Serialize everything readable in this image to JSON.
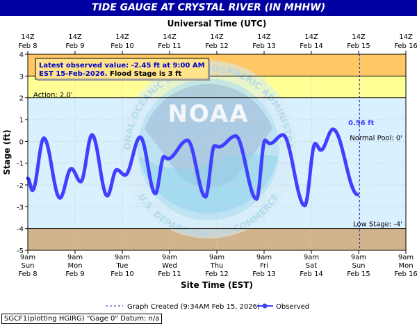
{
  "chart_data": {
    "type": "line",
    "title": "TIDE GAUGE AT CRYSTAL RIVER (IN MHHW)",
    "top_axis_label": "Universal Time (UTC)",
    "xlabel": "Site Time (EST)",
    "ylabel": "Stage (ft)",
    "ylim": [
      -5,
      4
    ],
    "yticks": [
      "4",
      "3",
      "2",
      "1",
      "0",
      "-1",
      "-2",
      "-3",
      "-4",
      "-5"
    ],
    "x_range": [
      "2026-02-08 09:00 EST",
      "2026-02-16 09:00 EST"
    ],
    "top_ticks": [
      {
        "time": "14Z",
        "date": "Feb  8"
      },
      {
        "time": "14Z",
        "date": "Feb  9"
      },
      {
        "time": "14Z",
        "date": "Feb 10"
      },
      {
        "time": "14Z",
        "date": "Feb 11"
      },
      {
        "time": "14Z",
        "date": "Feb 12"
      },
      {
        "time": "14Z",
        "date": "Feb 13"
      },
      {
        "time": "14Z",
        "date": "Feb 14"
      },
      {
        "time": "14Z",
        "date": "Feb 15"
      },
      {
        "time": "14Z",
        "date": "Feb 16"
      }
    ],
    "bottom_ticks": [
      {
        "time": "9am",
        "day": "Sun",
        "date": "Feb 8"
      },
      {
        "time": "9am",
        "day": "Mon",
        "date": "Feb 9"
      },
      {
        "time": "9am",
        "day": "Tue",
        "date": "Feb 10"
      },
      {
        "time": "9am",
        "day": "Wed",
        "date": "Feb 11"
      },
      {
        "time": "9am",
        "day": "Thu",
        "date": "Feb 12"
      },
      {
        "time": "9am",
        "day": "Fri",
        "date": "Feb 13"
      },
      {
        "time": "9am",
        "day": "Sat",
        "date": "Feb 14"
      },
      {
        "time": "9am",
        "day": "Sun",
        "date": "Feb 15"
      },
      {
        "time": "9am",
        "day": "Mon",
        "date": "Feb 16"
      }
    ],
    "bands": [
      {
        "name": "flood",
        "from": 3,
        "to": 4,
        "color": "#ffc864"
      },
      {
        "name": "action",
        "from": 2,
        "to": 3,
        "color": "#ffff96"
      },
      {
        "name": "low",
        "from": -5,
        "to": -4,
        "color": "#d2b48c"
      }
    ],
    "thresholds": [
      {
        "label": "Action: 2.0'",
        "value": 2.0
      },
      {
        "label": "Normal Pool: 0'",
        "value": 0
      },
      {
        "label": "Low Stage: -4'",
        "value": -4
      }
    ],
    "info_box": {
      "line1": "Latest observed value: -2.45 ft at 9:00 AM",
      "line2a": "EST 15-Feb-2026.",
      "line2b": "Flood Stage is 3 ft"
    },
    "max_label": {
      "text": "0.56 ft",
      "day": 6.78,
      "value": 0.56
    },
    "graph_created_day": 7.02,
    "series": [
      {
        "name": "Observed",
        "color": "#4040ff",
        "extrema": [
          [
            0.0,
            -1.7
          ],
          [
            0.1,
            -2.25
          ],
          [
            0.34,
            0.15
          ],
          [
            0.68,
            -2.6
          ],
          [
            0.92,
            -1.25
          ],
          [
            1.12,
            -1.85
          ],
          [
            1.36,
            0.3
          ],
          [
            1.68,
            -2.5
          ],
          [
            1.88,
            -1.3
          ],
          [
            2.06,
            -1.55
          ],
          [
            2.38,
            0.2
          ],
          [
            2.7,
            -2.4
          ],
          [
            2.88,
            -0.7
          ],
          [
            2.96,
            -0.8
          ],
          [
            3.38,
            0.05
          ],
          [
            3.76,
            -2.55
          ],
          [
            3.95,
            -0.2
          ],
          [
            4.04,
            -0.25
          ],
          [
            4.4,
            0.25
          ],
          [
            4.84,
            -2.65
          ],
          [
            5.02,
            0.05
          ],
          [
            5.12,
            -0.1
          ],
          [
            5.4,
            0.3
          ],
          [
            5.86,
            -2.95
          ],
          [
            6.08,
            -0.1
          ],
          [
            6.2,
            -0.4
          ],
          [
            6.46,
            0.56
          ],
          [
            6.98,
            -2.45
          ]
        ]
      }
    ],
    "legend": [
      "Graph Created (9:34AM Feb 15, 2026)",
      "Observed"
    ],
    "watermark": {
      "agency": "NOAA",
      "ring_text": "NATIONAL OCEANIC AND ATMOSPHERIC ADMINISTRATION",
      "bottom_text": "U.S. DEPARTMENT OF COMMERCE"
    }
  },
  "footer": {
    "note": "SGCF1(plotting HGIRG) \"Gage 0\" Datum: n/a"
  }
}
